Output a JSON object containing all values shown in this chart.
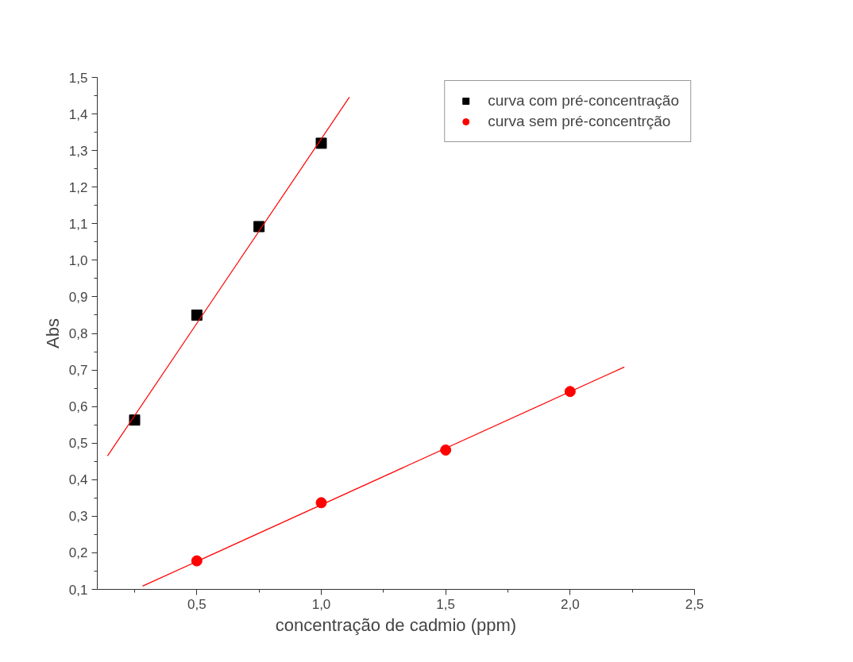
{
  "chart_data": {
    "type": "scatter",
    "xlabel": "concentração de cadmio (ppm)",
    "ylabel": "Abs",
    "xlim": [
      0.1,
      2.5
    ],
    "ylim": [
      0.1,
      1.5
    ],
    "xticks": [
      {
        "value": 0.25,
        "label": null
      },
      {
        "value": 0.5,
        "label": "0,5"
      },
      {
        "value": 0.75,
        "label": null
      },
      {
        "value": 1.0,
        "label": "1,0"
      },
      {
        "value": 1.25,
        "label": null
      },
      {
        "value": 1.5,
        "label": "1,5"
      },
      {
        "value": 1.75,
        "label": null
      },
      {
        "value": 2.0,
        "label": "2,0"
      },
      {
        "value": 2.25,
        "label": null
      },
      {
        "value": 2.5,
        "label": "2,5"
      }
    ],
    "yticks": [
      {
        "value": 0.1,
        "label": "0,1"
      },
      {
        "value": 0.15,
        "label": null
      },
      {
        "value": 0.2,
        "label": "0,2"
      },
      {
        "value": 0.25,
        "label": null
      },
      {
        "value": 0.3,
        "label": "0,3"
      },
      {
        "value": 0.35,
        "label": null
      },
      {
        "value": 0.4,
        "label": "0,4"
      },
      {
        "value": 0.45,
        "label": null
      },
      {
        "value": 0.5,
        "label": "0,5"
      },
      {
        "value": 0.55,
        "label": null
      },
      {
        "value": 0.6,
        "label": "0,6"
      },
      {
        "value": 0.65,
        "label": null
      },
      {
        "value": 0.7,
        "label": "0,7"
      },
      {
        "value": 0.75,
        "label": null
      },
      {
        "value": 0.8,
        "label": "0,8"
      },
      {
        "value": 0.85,
        "label": null
      },
      {
        "value": 0.9,
        "label": "0,9"
      },
      {
        "value": 0.95,
        "label": null
      },
      {
        "value": 1.0,
        "label": "1,0"
      },
      {
        "value": 1.05,
        "label": null
      },
      {
        "value": 1.1,
        "label": "1,1"
      },
      {
        "value": 1.15,
        "label": null
      },
      {
        "value": 1.2,
        "label": "1,2"
      },
      {
        "value": 1.25,
        "label": null
      },
      {
        "value": 1.3,
        "label": "1,3"
      },
      {
        "value": 1.35,
        "label": null
      },
      {
        "value": 1.4,
        "label": "1,4"
      },
      {
        "value": 1.45,
        "label": null
      },
      {
        "value": 1.5,
        "label": "1,5"
      }
    ],
    "grid": false,
    "legend": "top right",
    "series": [
      {
        "name": "curva com pré-concentração",
        "color": "#000000",
        "marker": "square",
        "x": [
          0.25,
          0.5,
          0.75,
          1.0
        ],
        "values": [
          0.563,
          0.85,
          1.092,
          1.32
        ]
      },
      {
        "name": "curva sem pré-concentrção",
        "color": "#ff0000",
        "marker": "circle",
        "x": [
          0.5,
          1.0,
          1.5,
          2.0
        ],
        "values": [
          0.178,
          0.337,
          0.481,
          0.641
        ]
      },
      {
        "type": "line",
        "color": "#ff0000",
        "marker": "none",
        "x": [
          0.141,
          1.113
        ],
        "values": [
          0.465,
          1.446
        ]
      },
      {
        "type": "line",
        "color": "#ff0000",
        "marker": "none",
        "x": [
          0.282,
          2.218
        ],
        "values": [
          0.109,
          0.708
        ]
      }
    ]
  }
}
